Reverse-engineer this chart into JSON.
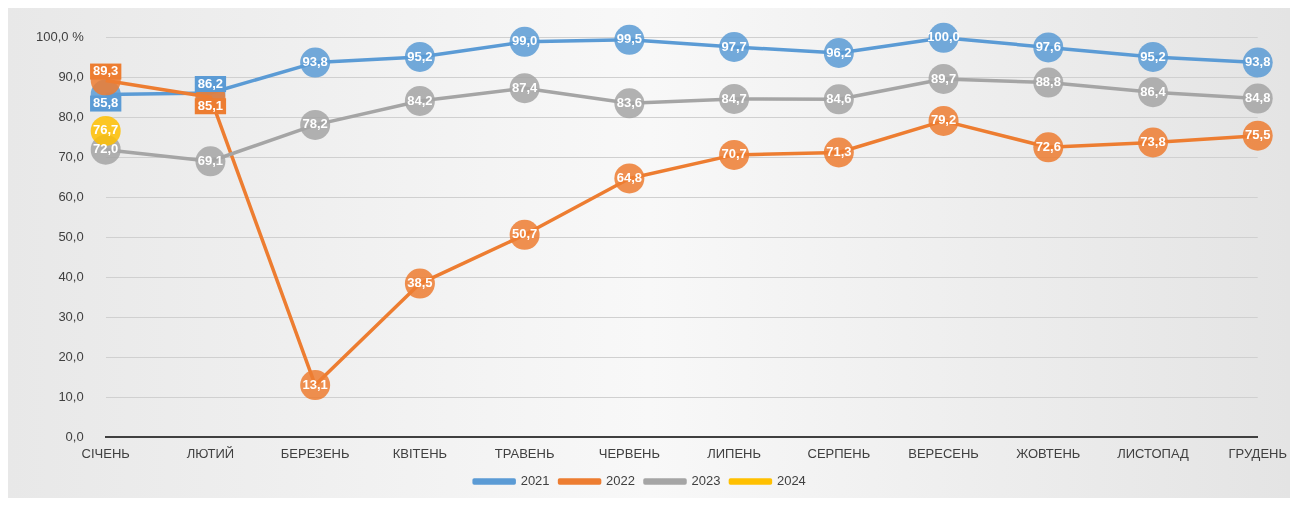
{
  "chart_data": {
    "type": "line",
    "categories": [
      "СІЧЕНЬ",
      "ЛЮТИЙ",
      "БЕРЕЗЕНЬ",
      "КВІТЕНЬ",
      "ТРАВЕНЬ",
      "ЧЕРВЕНЬ",
      "ЛИПЕНЬ",
      "СЕРПЕНЬ",
      "ВЕРЕСЕНЬ",
      "ЖОВТЕНЬ",
      "ЛИСТОПАД",
      "ГРУДЕНЬ"
    ],
    "series": [
      {
        "name": "2021",
        "color": "#5b9bd5",
        "values": [
          85.8,
          86.2,
          93.8,
          95.2,
          99.0,
          99.5,
          97.7,
          96.2,
          100.0,
          97.6,
          95.2,
          93.8
        ],
        "value_labels": [
          "85,8",
          "86,2",
          "93,8",
          "95,2",
          "99,0",
          "99,5",
          "97,7",
          "96,2",
          "100,0",
          "97,6",
          "95,2",
          "93,8"
        ]
      },
      {
        "name": "2022",
        "color": "#ed7d31",
        "values": [
          89.3,
          85.1,
          13.1,
          38.5,
          50.7,
          64.8,
          70.7,
          71.3,
          79.2,
          72.6,
          73.8,
          75.5
        ],
        "value_labels": [
          "89,3",
          "85,1",
          "13,1",
          "38,5",
          "50,7",
          "64,8",
          "70,7",
          "71,3",
          "79,2",
          "72,6",
          "73,8",
          "75,5"
        ]
      },
      {
        "name": "2023",
        "color": "#a5a5a5",
        "values": [
          72.0,
          69.1,
          78.2,
          84.2,
          87.4,
          83.6,
          84.7,
          84.6,
          89.7,
          88.8,
          86.4,
          84.8
        ],
        "value_labels": [
          "72,0",
          "69,1",
          "78,2",
          "84,2",
          "87,4",
          "83,6",
          "84,7",
          "84,6",
          "89,7",
          "88,8",
          "86,4",
          "84,8"
        ]
      },
      {
        "name": "2024",
        "color": "#ffc000",
        "values": [
          76.7,
          null,
          null,
          null,
          null,
          null,
          null,
          null,
          null,
          null,
          null,
          null
        ],
        "value_labels": [
          "76,7",
          null,
          null,
          null,
          null,
          null,
          null,
          null,
          null,
          null,
          null,
          null
        ]
      }
    ],
    "ylim": [
      0,
      100
    ],
    "yticks": [
      {
        "value": 0,
        "label": "0,0"
      },
      {
        "value": 10,
        "label": "10,0"
      },
      {
        "value": 20,
        "label": "20,0"
      },
      {
        "value": 30,
        "label": "30,0"
      },
      {
        "value": 40,
        "label": "40,0"
      },
      {
        "value": 50,
        "label": "50,0"
      },
      {
        "value": 60,
        "label": "60,0"
      },
      {
        "value": 70,
        "label": "70,0"
      },
      {
        "value": 80,
        "label": "80,0"
      },
      {
        "value": 90,
        "label": "90,0"
      },
      {
        "value": 100,
        "label": "100,0 %"
      }
    ],
    "grid": "y",
    "legend": "bottom",
    "marker": "circle",
    "line_style": "solid"
  }
}
